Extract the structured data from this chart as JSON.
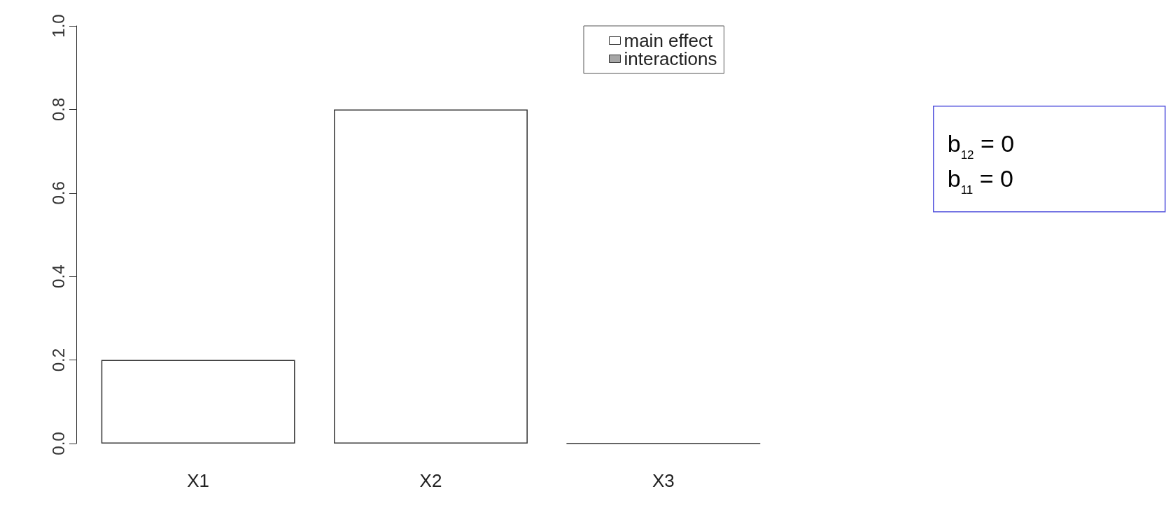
{
  "chart_data": {
    "type": "bar",
    "stacked": true,
    "categories": [
      "X1",
      "X2",
      "X3"
    ],
    "series": [
      {
        "name": "main effect",
        "color": "#ffffff",
        "values": [
          0.2,
          0.8,
          0
        ]
      },
      {
        "name": "interactions",
        "color": "#a6a6a6",
        "values": [
          0,
          0,
          0
        ]
      }
    ],
    "ylim": [
      0,
      1
    ],
    "yticks": [
      {
        "value": 0,
        "label": "0.0"
      },
      0.2,
      0.4,
      0.6,
      0.8,
      {
        "value": 1,
        "label": "1.0"
      }
    ],
    "grid": false,
    "legend": "top right",
    "annotations": [
      "b$_{12}$ = 0",
      "b$_{11}$ = 0"
    ]
  }
}
